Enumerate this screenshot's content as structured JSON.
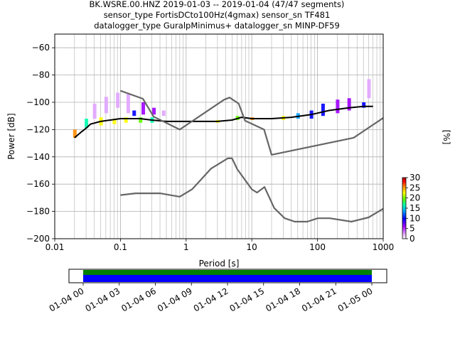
{
  "title_lines": [
    "BK.WSRE.00.HNZ   2019-01-03 -- 2019-01-04  (47/47 segments)",
    "sensor_type FortisDCto100Hz(4gmax) sensor_sn TF481",
    "datalogger_type GuralpMinimus+ datalogger_sn MINP-DF59"
  ],
  "chart_data": [
    {
      "type": "heatmap",
      "subtype": "probabilistic-power-spectral-density",
      "xlabel": "Period [s]",
      "ylabel": "Power [dB]",
      "x_scale": "log",
      "xlim": [
        0.01,
        1000
      ],
      "ylim": [
        -200,
        -50
      ],
      "x_ticks": [
        0.01,
        0.1,
        1,
        10,
        100,
        1000
      ],
      "x_tick_labels": [
        "0.01",
        "0.1",
        "1",
        "10",
        "100",
        "1000"
      ],
      "y_ticks": [
        -200,
        -180,
        -160,
        -140,
        -120,
        -100,
        -80,
        -60
      ],
      "y_tick_labels": [
        "-200",
        "-180",
        "-160",
        "-140",
        "-120",
        "-100",
        "-80",
        "-60"
      ],
      "grid": true,
      "colorbar": {
        "label": "[%]",
        "range": [
          0,
          30
        ],
        "ticks": [
          "0",
          "5",
          "10",
          "15",
          "20",
          "25",
          "30"
        ],
        "colormap": [
          "#ffffff",
          "#e1a4ff",
          "#a000ff",
          "#0000ff",
          "#00a0ff",
          "#00ffb0",
          "#60ff00",
          "#ffff00",
          "#ff8c00",
          "#ff0000",
          "#a00000"
        ]
      },
      "series": [
        {
          "role": "ppsd-mode",
          "color": "#000000",
          "points": [
            [
              0.02,
              -126
            ],
            [
              0.025,
              -122
            ],
            [
              0.03,
              -119
            ],
            [
              0.035,
              -116
            ],
            [
              0.05,
              -114
            ],
            [
              0.1,
              -112
            ],
            [
              0.2,
              -112
            ],
            [
              0.3,
              -113
            ],
            [
              0.5,
              -114
            ],
            [
              1,
              -114
            ],
            [
              2,
              -114
            ],
            [
              3,
              -114
            ],
            [
              5,
              -113
            ],
            [
              7,
              -111
            ],
            [
              10,
              -112
            ],
            [
              20,
              -112
            ],
            [
              40,
              -111
            ],
            [
              80,
              -109
            ],
            [
              150,
              -106
            ],
            [
              300,
              -104
            ],
            [
              500,
              -103
            ],
            [
              700,
              -103
            ]
          ]
        },
        {
          "role": "new-high-noise-model",
          "color": "#666666",
          "points": [
            [
              0.1,
              -91.5
            ],
            [
              0.22,
              -97.4
            ],
            [
              0.32,
              -110.5
            ],
            [
              0.8,
              -120
            ],
            [
              3.8,
              -98
            ],
            [
              4.6,
              -96.5
            ],
            [
              6.3,
              -101
            ],
            [
              7.9,
              -113.5
            ],
            [
              15.4,
              -120
            ],
            [
              20,
              -138.5
            ],
            [
              354.8,
              -126
            ],
            [
              1000,
              -111.5
            ]
          ]
        },
        {
          "role": "new-low-noise-model",
          "color": "#666666",
          "points": [
            [
              0.1,
              -168
            ],
            [
              0.17,
              -166.7
            ],
            [
              0.4,
              -166.7
            ],
            [
              0.8,
              -169.2
            ],
            [
              1.24,
              -163.7
            ],
            [
              2.4,
              -148.6
            ],
            [
              4.3,
              -141.1
            ],
            [
              5,
              -141.1
            ],
            [
              6,
              -149
            ],
            [
              10,
              -163.8
            ],
            [
              12,
              -166.2
            ],
            [
              15.6,
              -162.1
            ],
            [
              21.9,
              -177.5
            ],
            [
              31.6,
              -185
            ],
            [
              45,
              -187.5
            ],
            [
              70,
              -187.5
            ],
            [
              101,
              -185
            ],
            [
              154,
              -185
            ],
            [
              328,
              -187.5
            ],
            [
              600,
              -184.4
            ],
            [
              1000,
              -178
            ]
          ]
        }
      ],
      "density_cells": [
        {
          "period": 0.02,
          "power_min": -126,
          "power_max": -120,
          "percent": 25
        },
        {
          "period": 0.03,
          "power_min": -119,
          "power_max": -112,
          "percent": 15
        },
        {
          "period": 0.04,
          "power_min": -112,
          "power_max": -101,
          "percent": 3
        },
        {
          "period": 0.05,
          "power_min": -117,
          "power_max": -111,
          "percent": 20
        },
        {
          "period": 0.06,
          "power_min": -108,
          "power_max": -96,
          "percent": 2
        },
        {
          "period": 0.08,
          "power_min": -116,
          "power_max": -112,
          "percent": 22
        },
        {
          "period": 0.09,
          "power_min": -104,
          "power_max": -93,
          "percent": 3
        },
        {
          "period": 0.12,
          "power_min": -115,
          "power_max": -111,
          "percent": 20
        },
        {
          "period": 0.13,
          "power_min": -108,
          "power_max": -94,
          "percent": 4
        },
        {
          "period": 0.16,
          "power_min": -110,
          "power_max": -106,
          "percent": 10
        },
        {
          "period": 0.2,
          "power_min": -115,
          "power_max": -111,
          "percent": 18
        },
        {
          "period": 0.22,
          "power_min": -109,
          "power_max": -100,
          "percent": 6
        },
        {
          "period": 0.3,
          "power_min": -115,
          "power_max": -111,
          "percent": 15
        },
        {
          "period": 0.32,
          "power_min": -109,
          "power_max": -104,
          "percent": 6
        },
        {
          "period": 0.45,
          "power_min": -110,
          "power_max": -106,
          "percent": 4
        },
        {
          "period": 3,
          "power_min": -115,
          "power_max": -113,
          "percent": 20
        },
        {
          "period": 6,
          "power_min": -113,
          "power_max": -110,
          "percent": 18
        },
        {
          "period": 10,
          "power_min": -113,
          "power_max": -111,
          "percent": 25
        },
        {
          "period": 30,
          "power_min": -113,
          "power_max": -110,
          "percent": 20
        },
        {
          "period": 50,
          "power_min": -112,
          "power_max": -108,
          "percent": 12
        },
        {
          "period": 80,
          "power_min": -112,
          "power_max": -106,
          "percent": 10
        },
        {
          "period": 120,
          "power_min": -110,
          "power_max": -101,
          "percent": 8
        },
        {
          "period": 200,
          "power_min": -108,
          "power_max": -98,
          "percent": 6
        },
        {
          "period": 300,
          "power_min": -106,
          "power_max": -97,
          "percent": 5
        },
        {
          "period": 500,
          "power_min": -104,
          "power_max": -100,
          "percent": 9
        },
        {
          "period": 600,
          "power_min": -97,
          "power_max": -83,
          "percent": 2
        }
      ]
    },
    {
      "type": "timeline",
      "subtype": "data-coverage",
      "x_tick_labels": [
        "01-04 00",
        "01-04 03",
        "01-04 06",
        "01-04 09",
        "01-04 12",
        "01-04 15",
        "01-04 18",
        "01-04 21",
        "01-05 00"
      ],
      "bands": [
        {
          "role": "ppsd-used",
          "color": "#008000"
        },
        {
          "role": "data-available",
          "color": "#0000ff"
        }
      ]
    }
  ]
}
